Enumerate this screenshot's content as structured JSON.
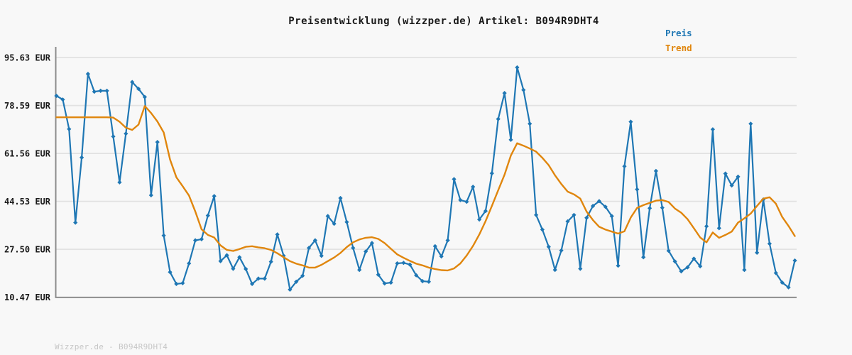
{
  "title": "Preisentwicklung (wizzper.de) Artikel: B094R9DHT4",
  "footer": "Wizzper.de - B094R9DHT4",
  "legend": {
    "preis_label": "Preis",
    "trend_label": "Trend"
  },
  "colors": {
    "background": "#f8f8f8",
    "grid": "#e2e2e2",
    "axis": "#8c8c8c",
    "price": "#1f77b4",
    "trend": "#e0860d",
    "title_text": "#1a1a1a",
    "footer_text": "#c6c6c6"
  },
  "chart_data": {
    "type": "line",
    "title": "Preisentwicklung (wizzper.de) Artikel: B094R9DHT4",
    "xlabel": "",
    "ylabel": "EUR",
    "ylim": [
      10.47,
      95.63
    ],
    "grid": true,
    "legend_position": "top-right",
    "x_axis_labels_visible": false,
    "y_ticks": [
      {
        "value": 95.63,
        "label": "95.63 EUR"
      },
      {
        "value": 78.59,
        "label": "78.59 EUR"
      },
      {
        "value": 61.56,
        "label": "61.56 EUR"
      },
      {
        "value": 44.53,
        "label": "44.53 EUR"
      },
      {
        "value": 27.5,
        "label": "27.50 EUR"
      },
      {
        "value": 10.47,
        "label": "10.47 EUR"
      }
    ],
    "series": [
      {
        "name": "Preis",
        "color": "#1f77b4",
        "markers": true,
        "values": [
          82.0,
          80.7,
          70.2,
          37.0,
          60.1,
          89.8,
          83.5,
          83.8,
          83.8,
          67.6,
          51.3,
          68.6,
          86.9,
          84.5,
          81.6,
          46.7,
          65.6,
          32.4,
          19.4,
          15.2,
          15.5,
          22.5,
          30.7,
          31.1,
          39.5,
          46.4,
          23.3,
          25.4,
          20.6,
          24.7,
          20.5,
          15.2,
          17.1,
          17.1,
          23.1,
          32.8,
          25.2,
          13.2,
          16.0,
          18.1,
          28.0,
          30.7,
          25.2,
          39.3,
          36.6,
          45.7,
          37.2,
          28.0,
          20.2,
          26.7,
          29.7,
          18.5,
          15.4,
          15.7,
          22.5,
          22.7,
          22.1,
          18.3,
          16.2,
          16.0,
          28.6,
          25.0,
          30.7,
          52.4,
          45.0,
          44.4,
          49.7,
          38.1,
          41.1,
          54.5,
          73.8,
          83.0,
          66.4,
          92.1,
          84.1,
          72.1,
          39.7,
          34.5,
          28.4,
          20.2,
          27.1,
          37.4,
          39.7,
          20.6,
          38.7,
          42.9,
          44.6,
          42.6,
          39.3,
          21.7,
          57.0,
          72.8,
          48.8,
          24.7,
          42.1,
          55.3,
          42.3,
          27.0,
          23.2,
          19.7,
          21.1,
          24.2,
          21.5,
          35.7,
          70.1,
          35.0,
          54.4,
          50.2,
          53.3,
          20.2,
          72.1,
          26.3,
          45.2,
          29.5,
          19.1,
          15.7,
          14.0,
          23.5
        ]
      },
      {
        "name": "Trend",
        "color": "#e0860d",
        "markers": false,
        "values": [
          74.4,
          74.4,
          74.4,
          74.4,
          74.4,
          74.4,
          74.4,
          74.4,
          74.4,
          74.3,
          72.8,
          70.7,
          69.9,
          71.8,
          78.4,
          75.9,
          72.9,
          69.0,
          59.4,
          53.1,
          49.9,
          46.6,
          40.9,
          34.6,
          32.6,
          31.7,
          28.9,
          27.3,
          26.9,
          27.6,
          28.4,
          28.6,
          28.2,
          27.9,
          27.3,
          26.1,
          24.7,
          23.3,
          22.4,
          21.8,
          21.0,
          21.0,
          22.0,
          23.3,
          24.6,
          26.2,
          28.3,
          30.0,
          31.0,
          31.6,
          31.8,
          31.2,
          29.7,
          27.7,
          25.7,
          24.5,
          23.4,
          22.4,
          21.8,
          21.0,
          20.5,
          20.1,
          20.0,
          20.7,
          22.5,
          25.3,
          28.7,
          32.8,
          37.5,
          42.9,
          48.5,
          54.0,
          60.8,
          65.2,
          64.3,
          63.3,
          62.2,
          60.0,
          57.4,
          53.8,
          50.7,
          48.0,
          47.0,
          45.5,
          40.9,
          37.9,
          35.5,
          34.5,
          33.8,
          33.1,
          33.9,
          38.8,
          42.2,
          43.2,
          44.0,
          44.8,
          45.0,
          44.3,
          42.0,
          40.5,
          38.2,
          35.0,
          31.7,
          30.0,
          33.5,
          31.6,
          32.6,
          33.8,
          37.0,
          38.5,
          40.2,
          42.9,
          45.5,
          46.0,
          43.7,
          39.0,
          35.8,
          32.2
        ]
      }
    ]
  }
}
